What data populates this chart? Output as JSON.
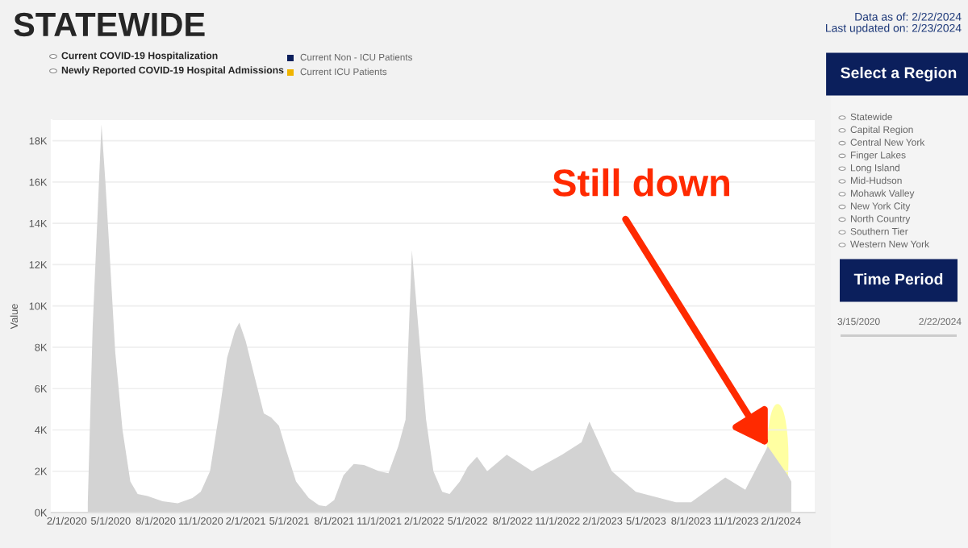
{
  "chart_data": {
    "type": "area",
    "title": "STATEWIDE",
    "ylabel": "Value",
    "x": [
      "2020-03-15",
      "2020-03-25",
      "2020-04-12",
      "2020-04-20",
      "2020-04-28",
      "2020-05-10",
      "2020-05-25",
      "2020-06-10",
      "2020-06-25",
      "2020-07-15",
      "2020-08-15",
      "2020-09-15",
      "2020-10-15",
      "2020-11-01",
      "2020-11-20",
      "2020-12-10",
      "2020-12-25",
      "2021-01-10",
      "2021-01-19",
      "2021-02-01",
      "2021-02-20",
      "2021-03-10",
      "2021-03-25",
      "2021-04-10",
      "2021-04-25",
      "2021-05-15",
      "2021-06-10",
      "2021-07-01",
      "2021-07-15",
      "2021-08-01",
      "2021-08-20",
      "2021-09-10",
      "2021-10-01",
      "2021-11-01",
      "2021-11-20",
      "2021-12-10",
      "2021-12-25",
      "2022-01-01",
      "2022-01-07",
      "2022-01-20",
      "2022-02-05",
      "2022-02-20",
      "2022-03-10",
      "2022-03-25",
      "2022-04-15",
      "2022-05-01",
      "2022-05-20",
      "2022-06-10",
      "2022-07-20",
      "2022-09-10",
      "2022-11-10",
      "2022-12-20",
      "2023-01-05",
      "2023-02-20",
      "2023-04-10",
      "2023-07-01",
      "2023-08-01",
      "2023-10-10",
      "2023-11-20",
      "2024-01-05",
      "2024-02-15",
      "2024-02-22"
    ],
    "series": [
      {
        "color": "#d3d3d3",
        "values": [
          500,
          9000,
          18800,
          16000,
          12800,
          7800,
          4000,
          1500,
          900,
          800,
          550,
          450,
          700,
          1000,
          2000,
          5000,
          7500,
          8800,
          9200,
          8300,
          6500,
          4800,
          4600,
          4200,
          3000,
          1500,
          700,
          350,
          300,
          600,
          1800,
          2350,
          2300,
          2000,
          1900,
          3200,
          4500,
          9000,
          12700,
          9000,
          4500,
          2000,
          1000,
          900,
          1500,
          2200,
          2700,
          2000,
          2800,
          2000,
          2800,
          3400,
          4400,
          2000,
          1000,
          500,
          500,
          1700,
          1100,
          3200,
          1800,
          1500
        ]
      }
    ],
    "xlim": [
      "2020-01-01",
      "2024-04-10"
    ],
    "xticks": [
      {
        "value": "2020-02-01",
        "label": "2/1/2020"
      },
      {
        "value": "2020-05-01",
        "label": "5/1/2020"
      },
      {
        "value": "2020-08-01",
        "label": "8/1/2020"
      },
      {
        "value": "2020-11-01",
        "label": "11/1/2020"
      },
      {
        "value": "2021-02-01",
        "label": "2/1/2021"
      },
      {
        "value": "2021-05-01",
        "label": "5/1/2021"
      },
      {
        "value": "2021-08-01",
        "label": "8/1/2021"
      },
      {
        "value": "2021-11-01",
        "label": "11/1/2021"
      },
      {
        "value": "2022-02-01",
        "label": "2/1/2022"
      },
      {
        "value": "2022-05-01",
        "label": "5/1/2022"
      },
      {
        "value": "2022-08-01",
        "label": "8/1/2022"
      },
      {
        "value": "2022-11-01",
        "label": "11/1/2022"
      },
      {
        "value": "2023-02-01",
        "label": "2/1/2023"
      },
      {
        "value": "2023-05-01",
        "label": "5/1/2023"
      },
      {
        "value": "2023-08-01",
        "label": "8/1/2023"
      },
      {
        "value": "2023-11-01",
        "label": "11/1/2023"
      },
      {
        "value": "2024-02-01",
        "label": "2/1/2024"
      }
    ],
    "ylim": [
      0,
      19000
    ],
    "yticks": [
      {
        "value": 0,
        "label": "0K"
      },
      {
        "value": 2000,
        "label": "2K"
      },
      {
        "value": 4000,
        "label": "4K"
      },
      {
        "value": 6000,
        "label": "6K"
      },
      {
        "value": 8000,
        "label": "8K"
      },
      {
        "value": 10000,
        "label": "10K"
      },
      {
        "value": 12000,
        "label": "12K"
      },
      {
        "value": 14000,
        "label": "14K"
      },
      {
        "value": 16000,
        "label": "16K"
      },
      {
        "value": 18000,
        "label": "18K"
      }
    ],
    "grid": "y",
    "annotations": [
      {
        "text": "Still down",
        "x": "2024-01-05",
        "y": 3200
      },
      "Data as of: 2/22/2024",
      "Last updated on: 2/23/2024",
      "Current COVID-19 Hospitalization",
      "Newly Reported COVID-19 Hospital Admissions",
      "Current Non - ICU Patients",
      "Current ICU Patients",
      "Select a Region",
      "Statewide",
      "Capital Region",
      "Central New York",
      "Finger Lakes",
      "Long Island",
      "Mid-Hudson",
      "Mohawk Valley",
      "New York City",
      "North Country",
      "Southern Tier",
      "Western New York",
      "Time Period",
      "3/15/2020",
      "2/22/2024"
    ]
  }
}
